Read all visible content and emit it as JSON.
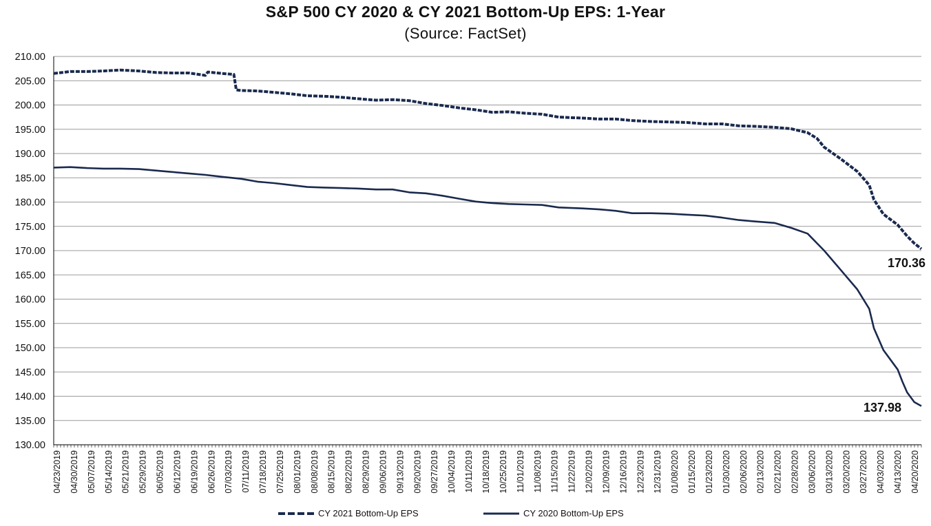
{
  "chart_data": {
    "type": "line",
    "title": "S&P 500 CY 2020 & CY 2021 Bottom-Up EPS: 1-Year",
    "subtitle": "(Source: FactSet)",
    "xlabel": "",
    "ylabel": "",
    "ylim": [
      130,
      210
    ],
    "yticks": [
      "130.00",
      "135.00",
      "140.00",
      "145.00",
      "150.00",
      "155.00",
      "160.00",
      "165.00",
      "170.00",
      "175.00",
      "180.00",
      "185.00",
      "190.00",
      "195.00",
      "200.00",
      "205.00",
      "210.00"
    ],
    "xticks": [
      "04/23/2019",
      "04/30/2019",
      "05/07/2019",
      "05/14/2019",
      "05/21/2019",
      "05/29/2019",
      "06/05/2019",
      "06/12/2019",
      "06/19/2019",
      "06/26/2019",
      "07/03/2019",
      "07/11/2019",
      "07/18/2019",
      "07/25/2019",
      "08/01/2019",
      "08/08/2019",
      "08/15/2019",
      "08/22/2019",
      "08/29/2019",
      "09/06/2019",
      "09/13/2019",
      "09/20/2019",
      "09/27/2019",
      "10/04/2019",
      "10/11/2019",
      "10/18/2019",
      "10/25/2019",
      "11/01/2019",
      "11/08/2019",
      "11/15/2019",
      "11/22/2019",
      "12/02/2019",
      "12/09/2019",
      "12/16/2019",
      "12/23/2019",
      "12/31/2019",
      "01/08/2020",
      "01/15/2020",
      "01/23/2020",
      "01/30/2020",
      "02/06/2020",
      "02/13/2020",
      "02/21/2020",
      "02/28/2020",
      "03/06/2020",
      "03/13/2020",
      "03/20/2020",
      "03/27/2020",
      "04/03/2020",
      "04/13/2020",
      "04/20/2020"
    ],
    "grid": true,
    "legend_position": "bottom",
    "series": [
      {
        "name": "CY 2021 Bottom-Up EPS",
        "style": "dashed",
        "color": "#1a2a4e",
        "points": [
          [
            "04/23/2019",
            206.5
          ],
          [
            "04/30/2019",
            206.9
          ],
          [
            "05/07/2019",
            206.9
          ],
          [
            "05/14/2019",
            207.0
          ],
          [
            "05/21/2019",
            207.2
          ],
          [
            "05/29/2019",
            207.0
          ],
          [
            "06/05/2019",
            206.7
          ],
          [
            "06/12/2019",
            206.6
          ],
          [
            "06/19/2019",
            206.6
          ],
          [
            "06/26/2019",
            206.1
          ],
          [
            "06/27/2019",
            206.8
          ],
          [
            "07/03/2019",
            206.5
          ],
          [
            "07/08/2019",
            206.3
          ],
          [
            "07/09/2019",
            203.1
          ],
          [
            "07/11/2019",
            203.0
          ],
          [
            "07/18/2019",
            202.9
          ],
          [
            "07/25/2019",
            202.6
          ],
          [
            "08/01/2019",
            202.3
          ],
          [
            "08/08/2019",
            201.9
          ],
          [
            "08/15/2019",
            201.8
          ],
          [
            "08/22/2019",
            201.6
          ],
          [
            "08/29/2019",
            201.3
          ],
          [
            "09/06/2019",
            201.0
          ],
          [
            "09/13/2019",
            201.1
          ],
          [
            "09/20/2019",
            200.9
          ],
          [
            "09/27/2019",
            200.3
          ],
          [
            "10/04/2019",
            199.9
          ],
          [
            "10/11/2019",
            199.4
          ],
          [
            "10/18/2019",
            199.0
          ],
          [
            "10/25/2019",
            198.5
          ],
          [
            "11/01/2019",
            198.6
          ],
          [
            "11/08/2019",
            198.3
          ],
          [
            "11/15/2019",
            198.1
          ],
          [
            "11/22/2019",
            197.5
          ],
          [
            "12/02/2019",
            197.3
          ],
          [
            "12/09/2019",
            197.1
          ],
          [
            "12/16/2019",
            197.1
          ],
          [
            "12/23/2019",
            196.8
          ],
          [
            "12/31/2019",
            196.6
          ],
          [
            "01/08/2020",
            196.5
          ],
          [
            "01/15/2020",
            196.4
          ],
          [
            "01/23/2020",
            196.1
          ],
          [
            "01/30/2020",
            196.1
          ],
          [
            "02/06/2020",
            195.7
          ],
          [
            "02/13/2020",
            195.6
          ],
          [
            "02/21/2020",
            195.4
          ],
          [
            "02/28/2020",
            195.1
          ],
          [
            "03/06/2020",
            194.3
          ],
          [
            "03/10/2020",
            193.1
          ],
          [
            "03/13/2020",
            191.3
          ],
          [
            "03/20/2020",
            188.9
          ],
          [
            "03/27/2020",
            186.3
          ],
          [
            "04/01/2020",
            183.5
          ],
          [
            "04/03/2020",
            180.5
          ],
          [
            "04/07/2020",
            177.5
          ],
          [
            "04/13/2020",
            175.3
          ],
          [
            "04/17/2020",
            173.0
          ],
          [
            "04/20/2020",
            171.5
          ],
          [
            "04/23/2020",
            170.36
          ]
        ],
        "end_label": "170.36"
      },
      {
        "name": "CY 2020 Bottom-Up EPS",
        "style": "solid",
        "color": "#1a2a4e",
        "points": [
          [
            "04/23/2019",
            187.1
          ],
          [
            "04/30/2019",
            187.2
          ],
          [
            "05/07/2019",
            187.0
          ],
          [
            "05/14/2019",
            186.9
          ],
          [
            "05/21/2019",
            186.9
          ],
          [
            "05/29/2019",
            186.8
          ],
          [
            "06/05/2019",
            186.5
          ],
          [
            "06/12/2019",
            186.2
          ],
          [
            "06/19/2019",
            185.9
          ],
          [
            "06/26/2019",
            185.6
          ],
          [
            "07/03/2019",
            185.2
          ],
          [
            "07/11/2019",
            184.8
          ],
          [
            "07/18/2019",
            184.2
          ],
          [
            "07/25/2019",
            183.9
          ],
          [
            "08/01/2019",
            183.5
          ],
          [
            "08/08/2019",
            183.1
          ],
          [
            "08/15/2019",
            183.0
          ],
          [
            "08/22/2019",
            182.9
          ],
          [
            "08/29/2019",
            182.8
          ],
          [
            "09/06/2019",
            182.6
          ],
          [
            "09/13/2019",
            182.6
          ],
          [
            "09/20/2019",
            182.0
          ],
          [
            "09/27/2019",
            181.8
          ],
          [
            "10/04/2019",
            181.3
          ],
          [
            "10/11/2019",
            180.7
          ],
          [
            "10/18/2019",
            180.1
          ],
          [
            "10/25/2019",
            179.8
          ],
          [
            "11/01/2019",
            179.6
          ],
          [
            "11/08/2019",
            179.5
          ],
          [
            "11/15/2019",
            179.4
          ],
          [
            "11/22/2019",
            178.9
          ],
          [
            "12/02/2019",
            178.7
          ],
          [
            "12/09/2019",
            178.5
          ],
          [
            "12/16/2019",
            178.2
          ],
          [
            "12/23/2019",
            177.7
          ],
          [
            "12/31/2019",
            177.7
          ],
          [
            "01/08/2020",
            177.6
          ],
          [
            "01/15/2020",
            177.4
          ],
          [
            "01/23/2020",
            177.2
          ],
          [
            "01/30/2020",
            176.8
          ],
          [
            "02/06/2020",
            176.3
          ],
          [
            "02/13/2020",
            176.0
          ],
          [
            "02/21/2020",
            175.7
          ],
          [
            "02/28/2020",
            174.7
          ],
          [
            "03/06/2020",
            173.5
          ],
          [
            "03/10/2020",
            171.5
          ],
          [
            "03/13/2020",
            170.0
          ],
          [
            "03/20/2020",
            166.0
          ],
          [
            "03/27/2020",
            162.0
          ],
          [
            "04/01/2020",
            158.0
          ],
          [
            "04/03/2020",
            154.0
          ],
          [
            "04/07/2020",
            149.5
          ],
          [
            "04/13/2020",
            145.5
          ],
          [
            "04/15/2020",
            143.0
          ],
          [
            "04/17/2020",
            140.8
          ],
          [
            "04/20/2020",
            138.8
          ],
          [
            "04/23/2020",
            137.98
          ]
        ],
        "end_label": "137.98"
      }
    ]
  }
}
